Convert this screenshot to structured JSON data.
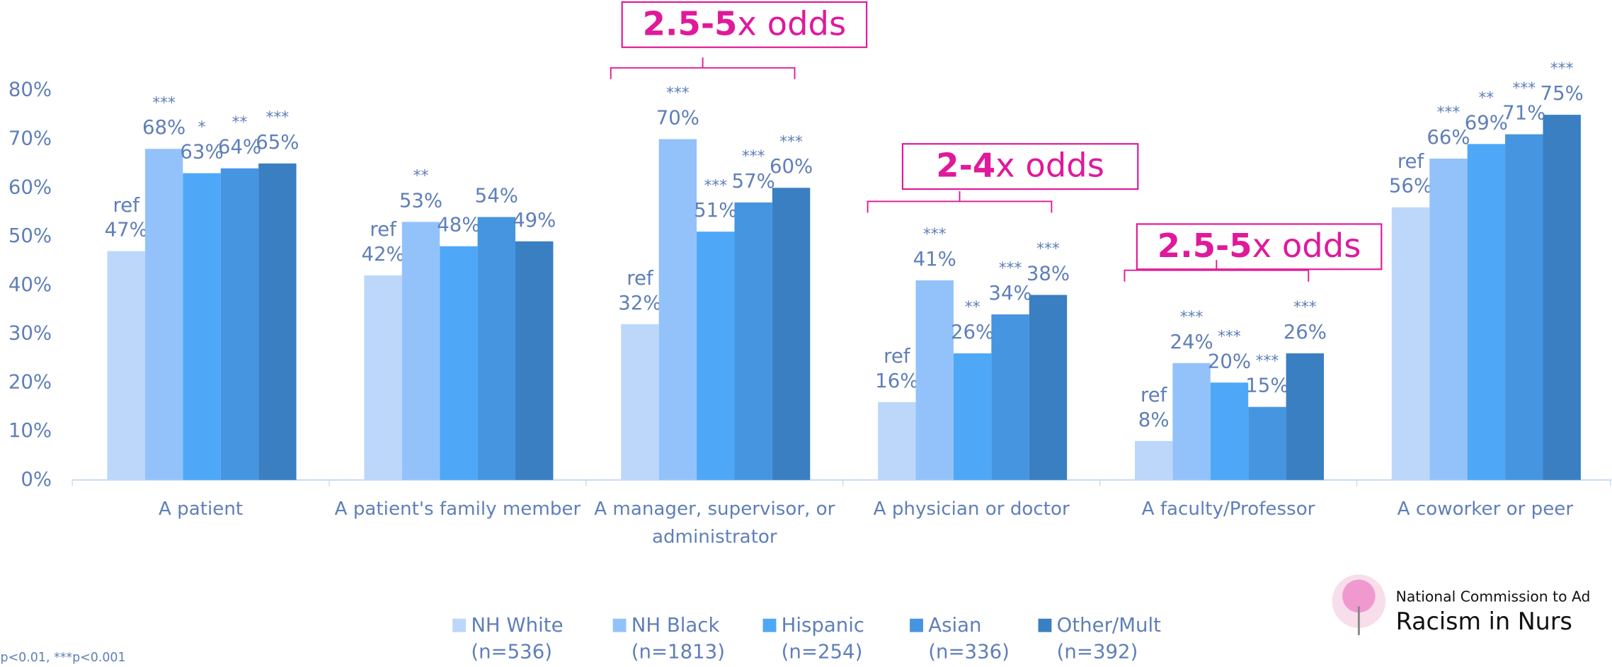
{
  "chart_data": {
    "type": "bar",
    "categories": [
      "A patient",
      "A patient's family member",
      "A manager, supervisor, or administrator",
      "A physician or doctor",
      "A faculty/Professor",
      "A coworker or peer"
    ],
    "series": [
      {
        "name": "NH White",
        "sample": "(n=536)",
        "color": "#bdd7fb",
        "values": [
          47,
          42,
          32,
          16,
          8,
          56
        ],
        "value_labels": [
          "47%",
          "42%",
          "32%",
          "16%",
          "8%",
          "56%"
        ],
        "significance": [
          "ref",
          "ref",
          "ref",
          "ref",
          "ref",
          "ref"
        ]
      },
      {
        "name": "NH Black",
        "sample": "(n=1813)",
        "color": "#93c2fb",
        "values": [
          68,
          53,
          70,
          41,
          24,
          66
        ],
        "value_labels": [
          "68%",
          "53%",
          "70%",
          "41%",
          "24%",
          "66%"
        ],
        "significance": [
          "***",
          "**",
          "***",
          "***",
          "***",
          "***"
        ]
      },
      {
        "name": "Hispanic",
        "sample": "(n=254)",
        "color": "#4ea8f7",
        "values": [
          63,
          48,
          51,
          26,
          20,
          69
        ],
        "value_labels": [
          "63%",
          "48%",
          "51%",
          "26%",
          "20%",
          "69%"
        ],
        "significance": [
          "*",
          null,
          "***",
          "**",
          "***",
          "**"
        ]
      },
      {
        "name": "Asian",
        "sample": "(n=336)",
        "color": "#4695e0",
        "values": [
          64,
          54,
          57,
          34,
          15,
          71
        ],
        "value_labels": [
          "64%",
          "54%",
          "57%",
          "34%",
          "15%",
          "71%"
        ],
        "significance": [
          "**",
          null,
          "***",
          "***",
          "***",
          "***"
        ]
      },
      {
        "name": "Other/Mult",
        "sample": "(n=392)",
        "color": "#3a7fc1",
        "values": [
          65,
          49,
          60,
          38,
          26,
          75
        ],
        "value_labels": [
          "65%",
          "49%",
          "60%",
          "38%",
          "26%",
          "75%"
        ],
        "significance": [
          "***",
          null,
          "***",
          "***",
          "***",
          "***"
        ]
      }
    ],
    "ylim": [
      0,
      80
    ],
    "yticks": [
      {
        "value": 0,
        "label": "0%"
      },
      {
        "value": 10,
        "label": "10%"
      },
      {
        "value": 20,
        "label": "20%"
      },
      {
        "value": 30,
        "label": "30%"
      },
      {
        "value": 40,
        "label": "40%"
      },
      {
        "value": 50,
        "label": "50%"
      },
      {
        "value": 60,
        "label": "60%"
      },
      {
        "value": 70,
        "label": "70%"
      },
      {
        "value": 80,
        "label": "80%"
      }
    ],
    "grid": false,
    "annotations": [
      {
        "emphasis": "2.5-5",
        "text": "x odds"
      },
      {
        "emphasis": "2-4",
        "text": "x odds"
      },
      {
        "emphasis": "2.5-5",
        "text": "x odds"
      }
    ],
    "footnote": "p<0.01, ***p<0.001",
    "logo": {
      "line1": "National Commission to Ad",
      "line2": "Racism in Nurs"
    }
  }
}
